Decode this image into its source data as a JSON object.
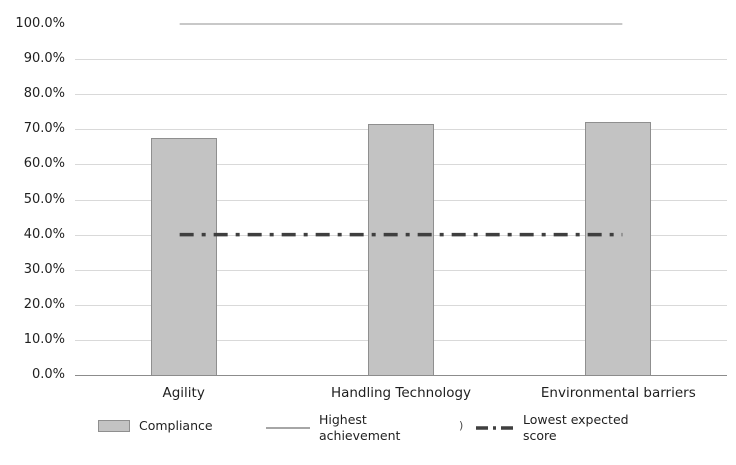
{
  "chart_data": {
    "type": "bar",
    "title": "",
    "categories": [
      "Agility",
      "Handling Technology",
      "Environmental barriers"
    ],
    "series": [
      {
        "name": "Compliance",
        "type": "bar",
        "values": [
          67.5,
          71.5,
          72.0
        ]
      },
      {
        "name": "Highest achievement",
        "type": "line",
        "values": [
          100,
          100,
          100
        ]
      },
      {
        "name": "Lowest expected score",
        "type": "dash-dot-line",
        "values": [
          40,
          40,
          40
        ]
      }
    ],
    "xlabel": "",
    "ylabel": "",
    "ylim": [
      0,
      100
    ],
    "ytick_step": 10,
    "ytick_labels": [
      "0.0%",
      "10.0%",
      "20.0%",
      "30.0%",
      "40.0%",
      "50.0%",
      "60.0%",
      "70.0%",
      "80.0%",
      "90.0%",
      "100.0%"
    ],
    "grid": "horizontal",
    "legend_position": "bottom"
  },
  "legend": {
    "items": [
      {
        "label": "Compliance",
        "swatch": "bar"
      },
      {
        "label": "Highest achievement",
        "swatch": "line"
      },
      {
        "label": "Lowest expected score",
        "swatch": "dash-dot"
      }
    ],
    "stray_text": ")"
  },
  "colors": {
    "bar_fill": "#c3c3c3",
    "bar_border": "#8f8f8f",
    "gridline": "#d9d9d9",
    "axis_line": "#8c8c8c",
    "highest_line": "#a6a6a6",
    "lowest_line": "#3f3f3f",
    "text": "#1f1f1f"
  }
}
